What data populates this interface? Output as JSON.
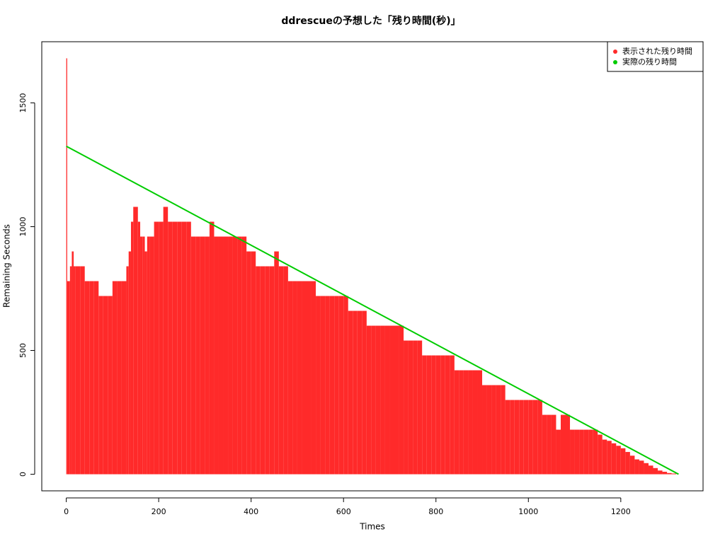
{
  "chart_data": {
    "type": "bar-line",
    "title": "ddrescueの予想した「残り時間(秒)」",
    "x_label": "Times",
    "y_label": "Remaining Seconds",
    "xlim": [
      -53,
      1378
    ],
    "ylim": [
      -67,
      1747
    ],
    "xticks": [
      0,
      200,
      400,
      600,
      800,
      1000,
      1200
    ],
    "yticks": [
      0,
      500,
      1000,
      1500
    ],
    "legend_position": "top-right",
    "series": [
      {
        "name": "表示された残り時間",
        "color": "#ff2a2a",
        "kind": "bar",
        "x": [
          0,
          2,
          8,
          12,
          16,
          20,
          30,
          40,
          50,
          60,
          70,
          80,
          90,
          100,
          110,
          120,
          130,
          135,
          140,
          145,
          150,
          155,
          160,
          165,
          170,
          175,
          180,
          190,
          200,
          210,
          220,
          230,
          240,
          250,
          260,
          270,
          280,
          290,
          300,
          310,
          320,
          330,
          340,
          350,
          360,
          370,
          380,
          390,
          400,
          410,
          420,
          430,
          440,
          450,
          460,
          470,
          480,
          490,
          500,
          510,
          520,
          530,
          540,
          550,
          560,
          570,
          580,
          590,
          600,
          610,
          620,
          630,
          640,
          650,
          660,
          670,
          680,
          690,
          700,
          710,
          720,
          730,
          740,
          750,
          760,
          770,
          780,
          790,
          800,
          810,
          820,
          830,
          840,
          850,
          860,
          870,
          880,
          890,
          900,
          910,
          920,
          930,
          940,
          950,
          960,
          970,
          980,
          990,
          1000,
          1010,
          1020,
          1030,
          1040,
          1050,
          1060,
          1070,
          1080,
          1090,
          1100,
          1110,
          1120,
          1130,
          1140,
          1150,
          1160,
          1170,
          1180,
          1190,
          1200,
          1210,
          1220,
          1230,
          1240,
          1250,
          1260,
          1270,
          1280,
          1290,
          1300,
          1310,
          1320
        ],
        "values": [
          1680,
          780,
          840,
          900,
          840,
          840,
          840,
          780,
          780,
          780,
          720,
          720,
          720,
          780,
          780,
          780,
          840,
          900,
          1020,
          1080,
          1080,
          1020,
          960,
          960,
          900,
          960,
          960,
          1020,
          1020,
          1080,
          1020,
          1020,
          1020,
          1020,
          1020,
          960,
          960,
          960,
          960,
          1020,
          960,
          960,
          960,
          960,
          960,
          960,
          960,
          900,
          900,
          840,
          840,
          840,
          840,
          900,
          840,
          840,
          780,
          780,
          780,
          780,
          780,
          780,
          720,
          720,
          720,
          720,
          720,
          720,
          720,
          660,
          660,
          660,
          660,
          600,
          600,
          600,
          600,
          600,
          600,
          600,
          600,
          540,
          540,
          540,
          540,
          480,
          480,
          480,
          480,
          480,
          480,
          480,
          420,
          420,
          420,
          420,
          420,
          420,
          360,
          360,
          360,
          360,
          360,
          300,
          300,
          300,
          300,
          300,
          300,
          300,
          300,
          240,
          240,
          240,
          180,
          240,
          240,
          180,
          180,
          180,
          180,
          180,
          180,
          160,
          140,
          135,
          125,
          115,
          105,
          90,
          75,
          60,
          55,
          45,
          35,
          25,
          15,
          10,
          5,
          3,
          0
        ]
      },
      {
        "name": "実際の残り時間",
        "color": "#00cc00",
        "kind": "line",
        "x": [
          0,
          1325
        ],
        "values": [
          1325,
          0
        ]
      }
    ]
  }
}
